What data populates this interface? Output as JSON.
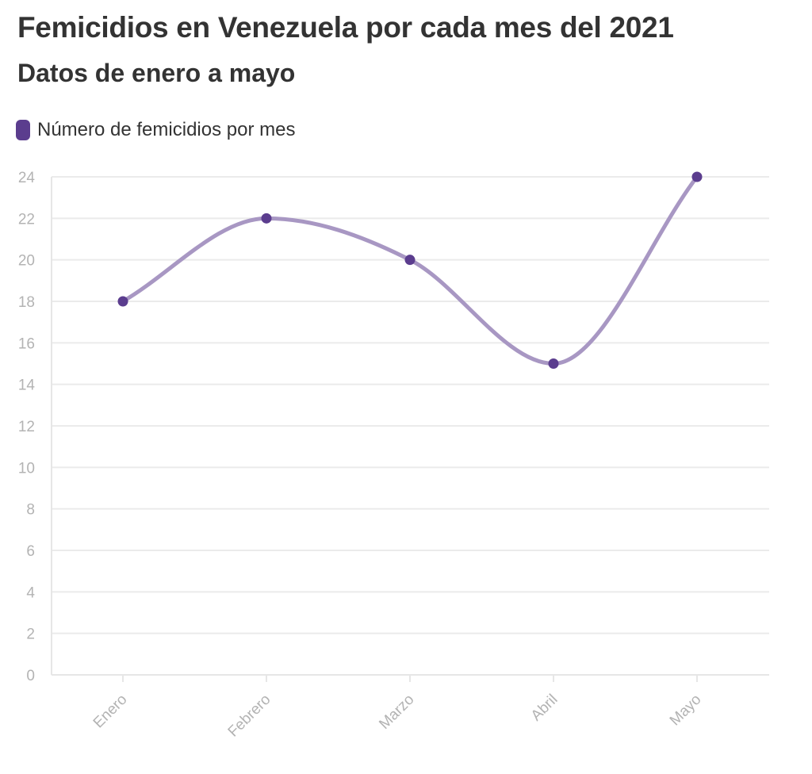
{
  "chart_data": {
    "type": "line",
    "title": "Femicidios en Venezuela por cada mes del 2021",
    "subtitle": "Datos de enero a mayo",
    "categories": [
      "Enero",
      "Febrero",
      "Marzo",
      "Abril",
      "Mayo"
    ],
    "series": [
      {
        "name": "Número de femicidios por mes",
        "values": [
          18,
          22,
          20,
          15,
          24
        ],
        "color": "#5b3d8e",
        "line_color": "#a897c3"
      }
    ],
    "yticks": [
      0,
      2,
      4,
      6,
      8,
      10,
      12,
      14,
      16,
      18,
      20,
      22,
      24
    ],
    "ylim": [
      0,
      24
    ],
    "grid": true,
    "legend_position": "top-left",
    "smooth": true
  }
}
